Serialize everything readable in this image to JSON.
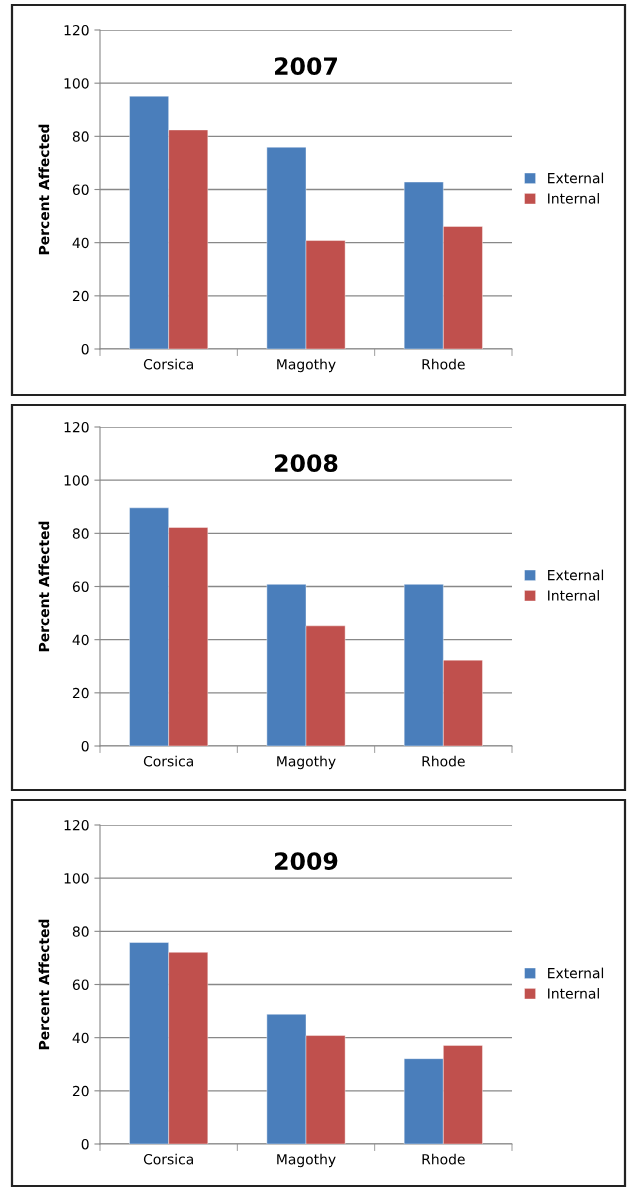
{
  "chart_data": [
    {
      "type": "bar",
      "title": "2007",
      "ylabel": "Percent Affected",
      "categories": [
        "Corsica",
        "Magothy",
        "Rhode"
      ],
      "series": [
        {
          "name": "External",
          "color": "#4a7ebb",
          "values": [
            95.1,
            75.9,
            62.8
          ]
        },
        {
          "name": "Internal",
          "color": "#c0504d",
          "values": [
            82.4,
            40.8,
            46.1
          ]
        }
      ],
      "ylim": [
        0,
        120
      ],
      "yticks": [
        0,
        20,
        40,
        60,
        80,
        100,
        120
      ],
      "grid": "y",
      "legend": "right"
    },
    {
      "type": "bar",
      "title": "2008",
      "ylabel": "Percent Affected",
      "categories": [
        "Corsica",
        "Magothy",
        "Rhode"
      ],
      "series": [
        {
          "name": "External",
          "color": "#4a7ebb",
          "values": [
            89.6,
            60.8,
            60.8
          ]
        },
        {
          "name": "Internal",
          "color": "#c0504d",
          "values": [
            82.2,
            45.2,
            32.3
          ]
        }
      ],
      "ylim": [
        0,
        120
      ],
      "yticks": [
        0,
        20,
        40,
        60,
        80,
        100,
        120
      ],
      "grid": "y",
      "legend": "right"
    },
    {
      "type": "bar",
      "title": "2009",
      "ylabel": "Percent Affected",
      "categories": [
        "Corsica",
        "Magothy",
        "Rhode"
      ],
      "series": [
        {
          "name": "External",
          "color": "#4a7ebb",
          "values": [
            75.8,
            48.8,
            32.1
          ]
        },
        {
          "name": "Internal",
          "color": "#c0504d",
          "values": [
            72.1,
            40.8,
            37.1
          ]
        }
      ],
      "ylim": [
        0,
        120
      ],
      "yticks": [
        0,
        20,
        40,
        60,
        80,
        100,
        120
      ],
      "grid": "y",
      "legend": "right"
    }
  ]
}
